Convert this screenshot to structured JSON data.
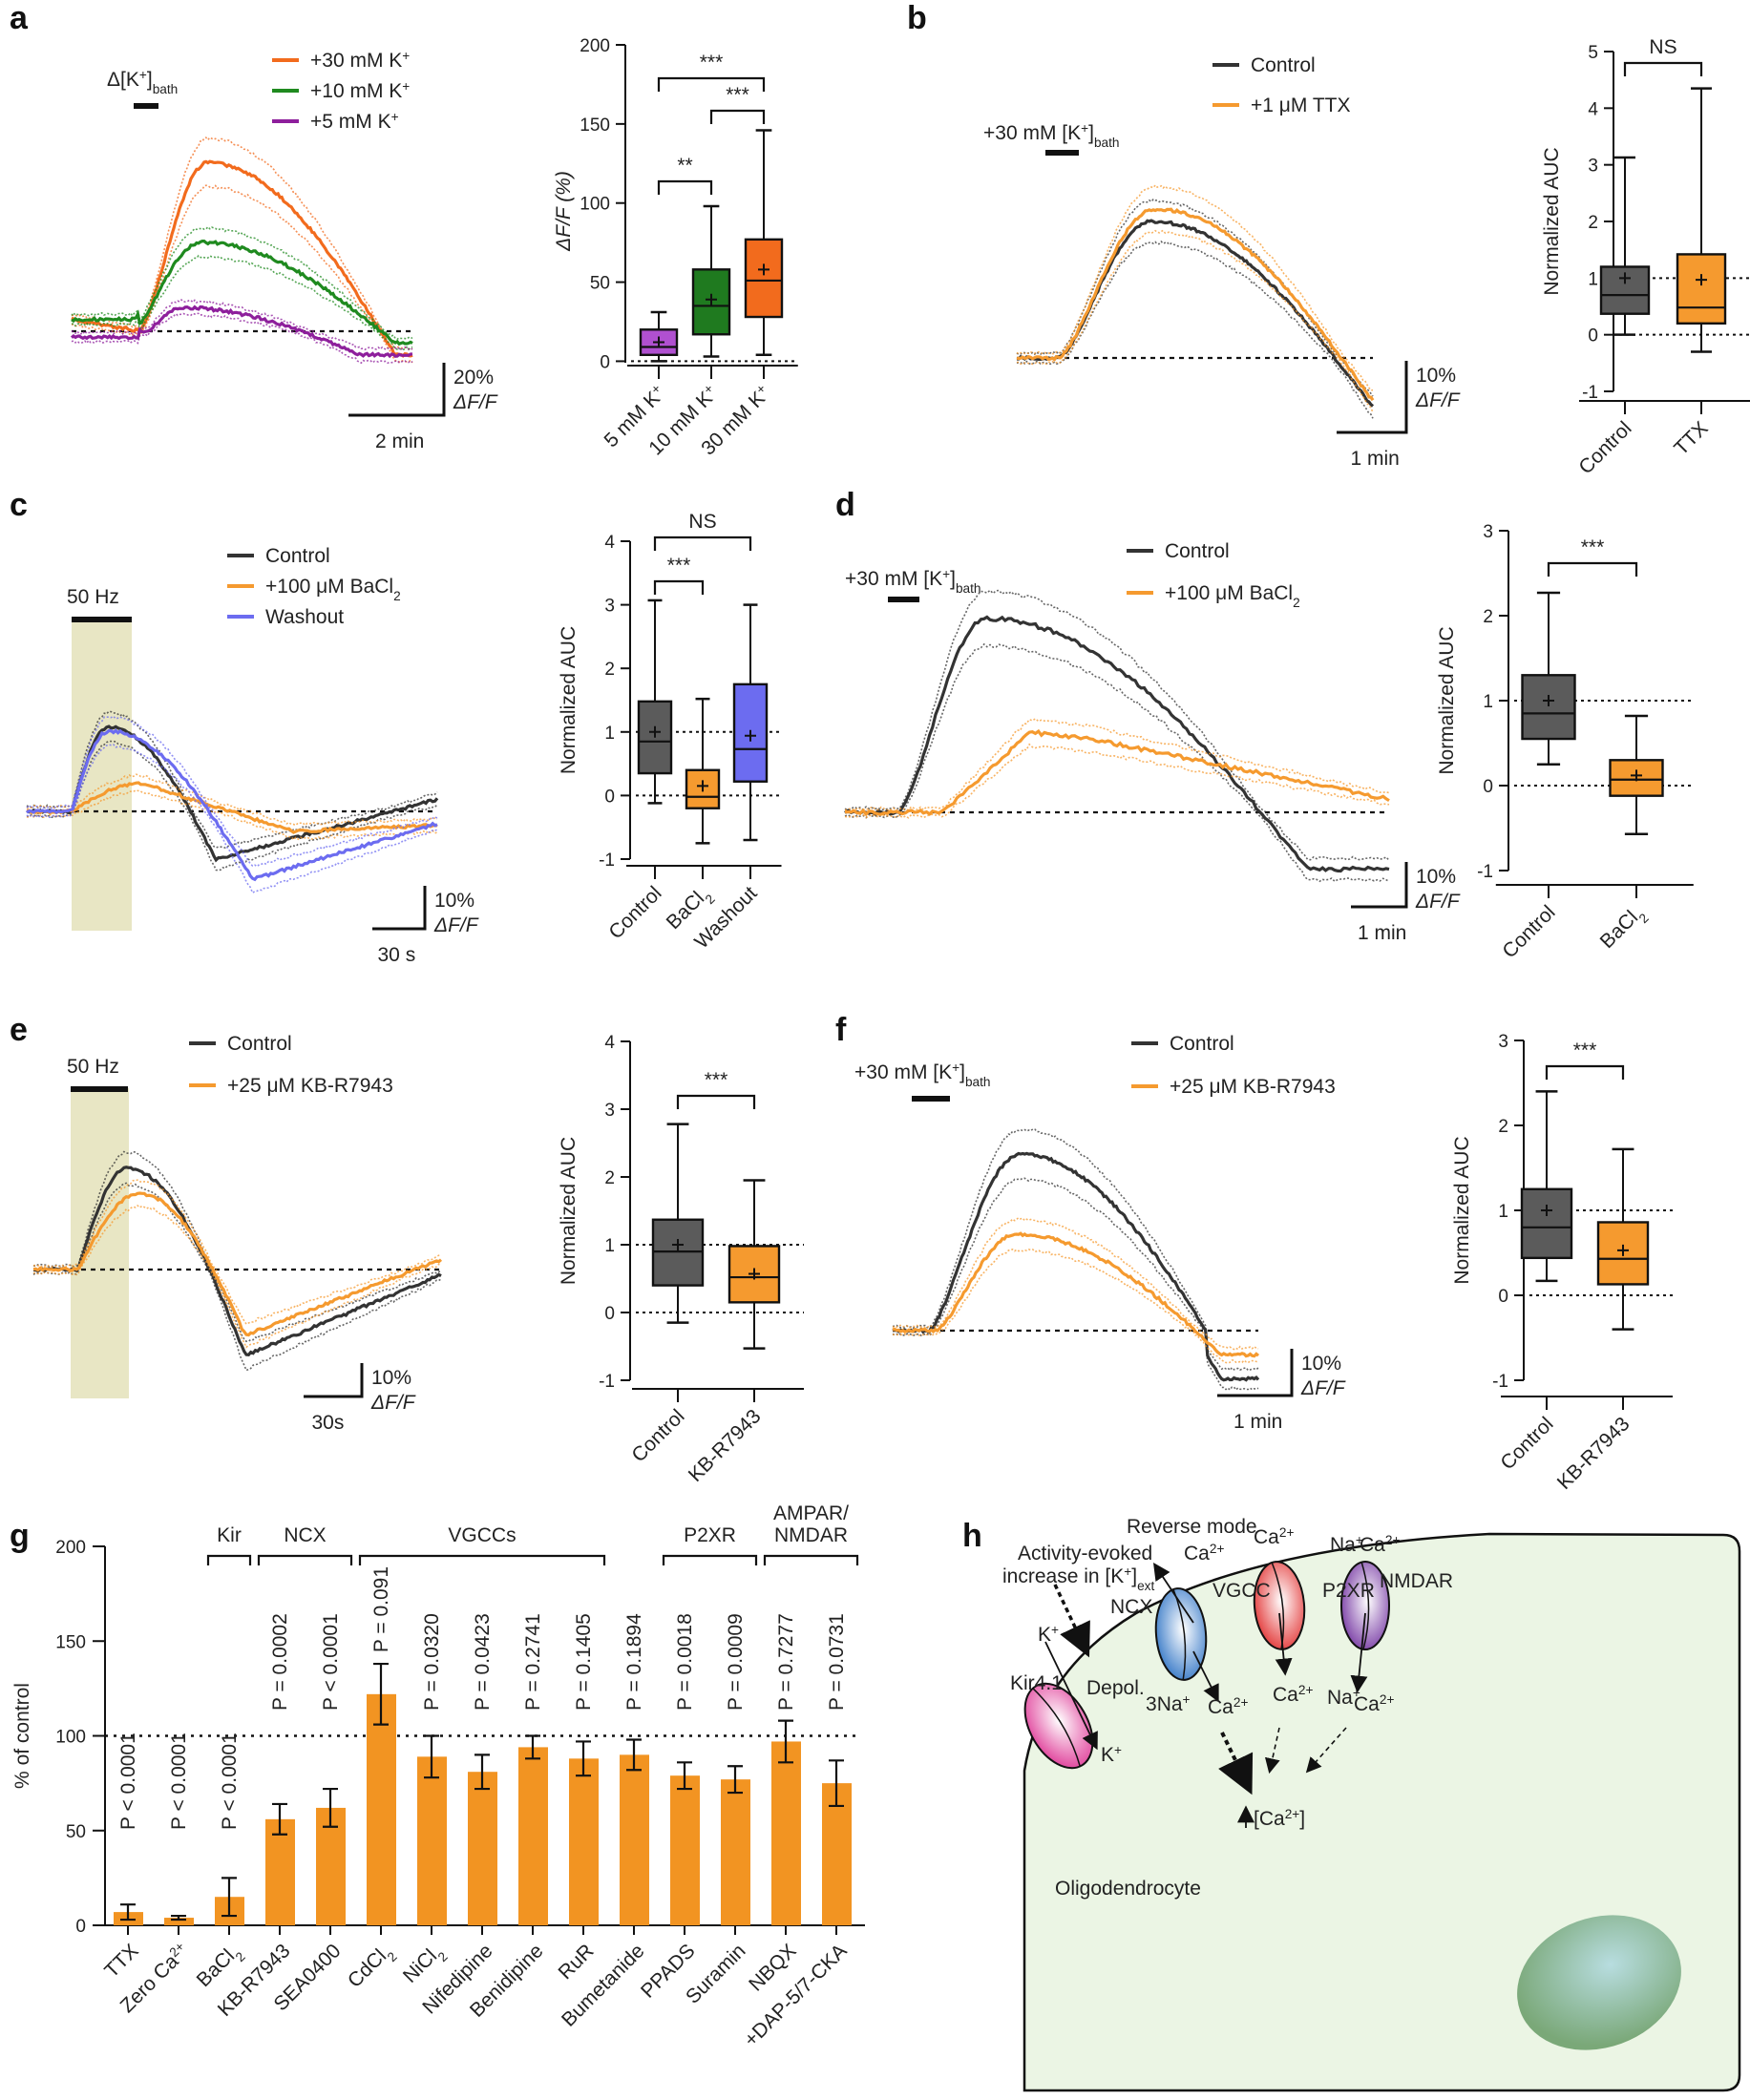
{
  "figure": {
    "panels": [
      "a",
      "b",
      "c",
      "d",
      "e",
      "f",
      "g",
      "h"
    ],
    "colors": {
      "orange30": "#f26b1d",
      "green": "#1f8a1f",
      "purple": "#8e1f9c",
      "control": "#333333",
      "orange": "#f59a2f",
      "washout": "#6c6cf0",
      "box_control": "#5b5b5b",
      "stim_shade": "#e8e6c4",
      "cell_fill": "#ebf5e4",
      "nucleus": "#7aa878",
      "kir": "#e0409a",
      "ncx": "#3a7bc8",
      "vgcc": "#e33a3a",
      "nmdar": "#7b3fa6"
    }
  },
  "chart_data": [
    {
      "id": "a-trace",
      "type": "line",
      "title": "",
      "stimulus_label": "Δ[K+]bath",
      "legend": [
        "+30 mM K+",
        "+10 mM K+",
        "+5 mM K+"
      ],
      "scale_bar": {
        "y": "20% ΔF/F",
        "x": "2 min"
      },
      "series": [
        {
          "name": "+30 mM K+",
          "color": "#f26b1d",
          "peak_dff_percent": 57,
          "end_dff_percent": -8
        },
        {
          "name": "+10 mM K+",
          "color": "#1f8a1f",
          "peak_dff_percent": 30,
          "end_dff_percent": -4
        },
        {
          "name": "+5 mM K+",
          "color": "#8e1f9c",
          "peak_dff_percent": 8,
          "end_dff_percent": -8
        }
      ]
    },
    {
      "id": "a-box",
      "type": "box",
      "ylabel": "ΔF/F (%)",
      "ylim": [
        -10,
        200
      ],
      "yticks": [
        0,
        50,
        100,
        150,
        200
      ],
      "categories": [
        "5 mM K+",
        "10 mM K+",
        "30 mM K+"
      ],
      "boxes": [
        {
          "min": 0,
          "q1": 4,
          "median": 9,
          "q3": 20,
          "max": 31,
          "mean": 12,
          "color": "#b050d0"
        },
        {
          "min": 3,
          "q1": 17,
          "median": 35,
          "q3": 58,
          "max": 98,
          "mean": 39,
          "color": "#1f7a1f"
        },
        {
          "min": 4,
          "q1": 28,
          "median": 51,
          "q3": 77,
          "max": 146,
          "mean": 58,
          "color": "#f26b1d"
        }
      ],
      "significance": [
        {
          "from": 0,
          "to": 2,
          "label": "***"
        },
        {
          "from": 1,
          "to": 2,
          "label": "***"
        },
        {
          "from": 0,
          "to": 1,
          "label": "**"
        }
      ],
      "reference_line": 0
    },
    {
      "id": "b-trace",
      "type": "line",
      "stimulus_label": "+30 mM [K+]bath",
      "legend": [
        "Control",
        "+1 μM TTX"
      ],
      "scale_bar": {
        "y": "10% ΔF/F",
        "x": "1 min"
      },
      "series": [
        {
          "name": "Control",
          "color": "#333333",
          "peak_dff_percent": 22
        },
        {
          "name": "+1 μM TTX",
          "color": "#f59a2f",
          "peak_dff_percent": 24
        }
      ]
    },
    {
      "id": "b-box",
      "type": "box",
      "ylabel": "Normalized AUC",
      "ylim": [
        -1,
        5
      ],
      "yticks": [
        -1,
        0,
        1,
        2,
        3,
        4,
        5
      ],
      "categories": [
        "Control",
        "TTX"
      ],
      "boxes": [
        {
          "min": 0.0,
          "q1": 0.37,
          "median": 0.7,
          "q3": 1.2,
          "max": 3.13,
          "mean": 1.0,
          "color": "#5b5b5b"
        },
        {
          "min": -0.3,
          "q1": 0.2,
          "median": 0.48,
          "q3": 1.42,
          "max": 4.35,
          "mean": 0.97,
          "color": "#f59a2f"
        }
      ],
      "significance": [
        {
          "from": 0,
          "to": 1,
          "label": "NS"
        }
      ],
      "reference_lines": [
        0,
        1
      ]
    },
    {
      "id": "c-trace",
      "type": "line",
      "stimulus_label": "50 Hz",
      "legend": [
        "Control",
        "+100 μM BaCl2",
        "Washout"
      ],
      "scale_bar": {
        "y": "10% ΔF/F",
        "x": "30 s"
      },
      "series": [
        {
          "name": "Control",
          "color": "#333333",
          "peak_dff_percent": 21,
          "trough_dff_percent": -12
        },
        {
          "name": "+100 μM BaCl2",
          "color": "#f59a2f",
          "peak_dff_percent": 7,
          "trough_dff_percent": -5
        },
        {
          "name": "Washout",
          "color": "#6c6cf0",
          "peak_dff_percent": 20,
          "trough_dff_percent": -17
        }
      ]
    },
    {
      "id": "c-box",
      "type": "box",
      "ylabel": "Normalized AUC",
      "ylim": [
        -1,
        4
      ],
      "yticks": [
        -1,
        0,
        1,
        2,
        3,
        4
      ],
      "categories": [
        "Control",
        "BaCl2",
        "Washout"
      ],
      "boxes": [
        {
          "min": -0.12,
          "q1": 0.35,
          "median": 0.85,
          "q3": 1.48,
          "max": 3.07,
          "mean": 1.0,
          "color": "#5b5b5b"
        },
        {
          "min": -0.75,
          "q1": -0.2,
          "median": -0.02,
          "q3": 0.4,
          "max": 1.52,
          "mean": 0.15,
          "color": "#f59a2f"
        },
        {
          "min": -0.7,
          "q1": 0.22,
          "median": 0.73,
          "q3": 1.75,
          "max": 3.0,
          "mean": 0.94,
          "color": "#6c6cf0"
        }
      ],
      "significance": [
        {
          "from": 0,
          "to": 2,
          "label": "NS"
        },
        {
          "from": 0,
          "to": 1,
          "label": "***"
        }
      ],
      "reference_lines": [
        0,
        1
      ]
    },
    {
      "id": "d-trace",
      "type": "line",
      "stimulus_label": "+30 mM [K+]bath",
      "legend": [
        "Control",
        "+100 μM BaCl2"
      ],
      "scale_bar": {
        "y": "10% ΔF/F",
        "x": "1 min"
      },
      "series": [
        {
          "name": "Control",
          "color": "#333333",
          "peak_dff_percent": 29,
          "end_dff_percent": -8
        },
        {
          "name": "+100 μM BaCl2",
          "color": "#f59a2f",
          "peak_dff_percent": 12,
          "end_dff_percent": 2
        }
      ]
    },
    {
      "id": "d-box",
      "type": "box",
      "ylabel": "Normalized AUC",
      "ylim": [
        -1,
        3
      ],
      "yticks": [
        -1,
        0,
        1,
        2,
        3
      ],
      "categories": [
        "Control",
        "BaCl2"
      ],
      "boxes": [
        {
          "min": 0.25,
          "q1": 0.55,
          "median": 0.85,
          "q3": 1.3,
          "max": 2.27,
          "mean": 1.0,
          "color": "#5b5b5b"
        },
        {
          "min": -0.57,
          "q1": -0.12,
          "median": 0.07,
          "q3": 0.3,
          "max": 0.82,
          "mean": 0.12,
          "color": "#f59a2f"
        }
      ],
      "significance": [
        {
          "from": 0,
          "to": 1,
          "label": "***"
        }
      ],
      "reference_lines": [
        0,
        1
      ]
    },
    {
      "id": "e-trace",
      "type": "line",
      "stimulus_label": "50 Hz",
      "legend": [
        "Control",
        "+25 μM KB-R7943"
      ],
      "scale_bar": {
        "y": "10% ΔF/F",
        "x": "30s"
      },
      "series": [
        {
          "name": "Control",
          "color": "#333333",
          "peak_dff_percent": 20,
          "trough_dff_percent": -17
        },
        {
          "name": "+25 μM KB-R7943",
          "color": "#f59a2f",
          "peak_dff_percent": 15,
          "trough_dff_percent": -13
        }
      ]
    },
    {
      "id": "e-box",
      "type": "box",
      "ylabel": "Normalized AUC",
      "ylim": [
        -1,
        4
      ],
      "yticks": [
        -1,
        0,
        1,
        2,
        3,
        4
      ],
      "categories": [
        "Control",
        "KB-R7943"
      ],
      "boxes": [
        {
          "min": -0.15,
          "q1": 0.4,
          "median": 0.9,
          "q3": 1.37,
          "max": 2.78,
          "mean": 1.0,
          "color": "#5b5b5b"
        },
        {
          "min": -0.53,
          "q1": 0.15,
          "median": 0.52,
          "q3": 0.98,
          "max": 1.95,
          "mean": 0.57,
          "color": "#f59a2f"
        }
      ],
      "significance": [
        {
          "from": 0,
          "to": 1,
          "label": "***"
        }
      ],
      "reference_lines": [
        0,
        1
      ]
    },
    {
      "id": "f-trace",
      "type": "line",
      "stimulus_label": "+30 mM [K+]bath",
      "legend": [
        "Control",
        "+25 μM KB-R7943"
      ],
      "scale_bar": {
        "y": "10% ΔF/F",
        "x": "1 min"
      },
      "series": [
        {
          "name": "Control",
          "color": "#333333",
          "peak_dff_percent": 22
        },
        {
          "name": "+25 μM KB-R7943",
          "color": "#f59a2f",
          "peak_dff_percent": 12
        }
      ]
    },
    {
      "id": "f-box",
      "type": "box",
      "ylabel": "Normalized AUC",
      "ylim": [
        -1,
        3
      ],
      "yticks": [
        -1,
        0,
        1,
        2,
        3
      ],
      "categories": [
        "Control",
        "KB-R7943"
      ],
      "boxes": [
        {
          "min": 0.17,
          "q1": 0.44,
          "median": 0.8,
          "q3": 1.25,
          "max": 2.4,
          "mean": 1.0,
          "color": "#5b5b5b"
        },
        {
          "min": -0.4,
          "q1": 0.13,
          "median": 0.43,
          "q3": 0.86,
          "max": 1.72,
          "mean": 0.53,
          "color": "#f59a2f"
        }
      ],
      "significance": [
        {
          "from": 0,
          "to": 1,
          "label": "***"
        }
      ],
      "reference_lines": [
        0,
        1
      ]
    },
    {
      "id": "g-bar",
      "type": "bar",
      "ylabel": "% of control",
      "ylim": [
        0,
        200
      ],
      "yticks": [
        0,
        50,
        100,
        150,
        200
      ],
      "reference_line": 100,
      "categories": [
        "TTX",
        "Zero Ca2+",
        "BaCl2",
        "KB-R7943",
        "SEA0400",
        "CdCl2",
        "NiCl2",
        "Nifedipine",
        "Benidipine",
        "RuR",
        "Bumetanide",
        "PPADS",
        "Suramin",
        "NBQX",
        "+DAP-5/7-CKA"
      ],
      "values": [
        7,
        4,
        15,
        56,
        62,
        122,
        89,
        81,
        94,
        88,
        90,
        79,
        77,
        97,
        75
      ],
      "errors": [
        4,
        1,
        10,
        8,
        10,
        16,
        11,
        9,
        6,
        9,
        8,
        7,
        7,
        11,
        12
      ],
      "p_values": [
        "P < 0.0001",
        "P < 0.0001",
        "P < 0.0001",
        "P = 0.0002",
        "P < 0.0001",
        "P = 0.091",
        "P = 0.0320",
        "P = 0.0423",
        "P = 0.2741",
        "P = 0.1405",
        "P = 0.1894",
        "P = 0.0018",
        "P = 0.0009",
        "P = 0.7277",
        "P = 0.0731"
      ],
      "groups": [
        {
          "label": "Kir",
          "from": 2,
          "to": 2
        },
        {
          "label": "NCX",
          "from": 3,
          "to": 4
        },
        {
          "label": "VGCCs",
          "from": 5,
          "to": 9
        },
        {
          "label": "P2XR",
          "from": 11,
          "to": 12
        },
        {
          "label": "AMPAR/ NMDAR",
          "from": 13,
          "to": 14
        }
      ],
      "color": "#f29422"
    }
  ],
  "diagram_h": {
    "title_annotation": "Activity-evoked increase in [K+]ext",
    "reverse_mode": "Reverse mode",
    "cell_label": "Oligodendrocyte",
    "ca_label": "↑ [Ca2+]",
    "depol": "Depol.",
    "channels": [
      {
        "name": "Kir4.1",
        "in": "K+",
        "out": "K+"
      },
      {
        "name": "NCX",
        "top": "Ca2+",
        "in": "3Na+",
        "out": "Ca2+"
      },
      {
        "name": "VGCC",
        "top": "Ca2+",
        "out": "Ca2+"
      },
      {
        "name": "P2XR"
      },
      {
        "name": "NMDAR",
        "top_left": "Na+",
        "top_right": "Ca2+",
        "out_left": "Na+",
        "out_right": "Ca2+"
      }
    ]
  }
}
